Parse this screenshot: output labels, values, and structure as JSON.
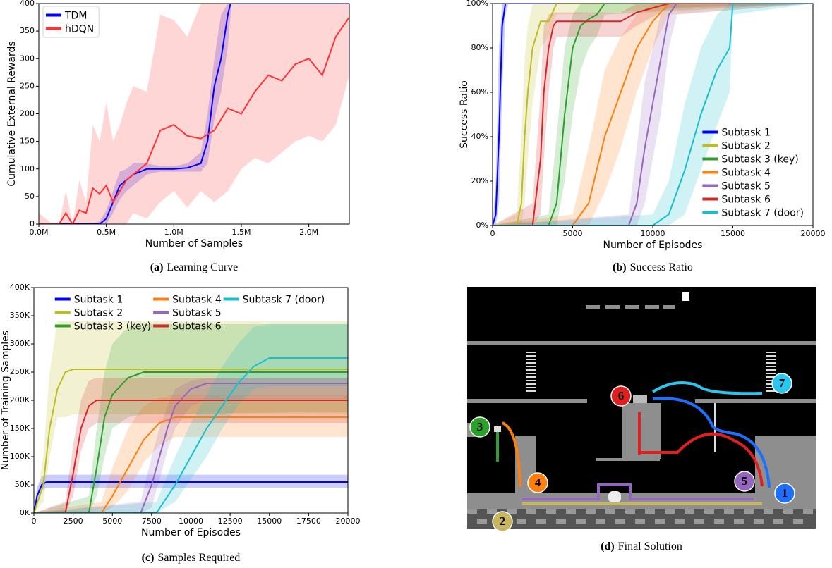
{
  "chart_data": [
    {
      "type": "line",
      "caption_label": "(a)",
      "caption": "Learning Curve",
      "xlabel": "Number of Samples",
      "ylabel": "Cumulative External Rewards",
      "xlim": [
        0,
        2300000
      ],
      "xticks": [
        {
          "value": 0,
          "label": "0.0M"
        },
        {
          "value": 500000,
          "label": "0.5M"
        },
        {
          "value": 1000000,
          "label": "1.0M"
        },
        {
          "value": 1500000,
          "label": "1.5M"
        },
        {
          "value": 2000000,
          "label": "2.0M"
        }
      ],
      "ylim": [
        0,
        400
      ],
      "yticks": [
        0,
        50,
        100,
        150,
        200,
        250,
        300,
        350,
        400
      ],
      "legend": "upper left",
      "legend_frame": true,
      "legend_columns": 1,
      "series": [
        {
          "name": "TDM",
          "color": "#0000ff",
          "x": [
            0,
            400000,
            450000,
            500000,
            550000,
            600000,
            650000,
            700000,
            750000,
            800000,
            900000,
            1000000,
            1100000,
            1200000,
            1250000,
            1300000,
            1350000,
            1400000,
            1420000,
            1430000,
            2300000
          ],
          "values": [
            0,
            0,
            0,
            10,
            40,
            70,
            80,
            90,
            95,
            100,
            100,
            100,
            102,
            110,
            150,
            250,
            300,
            380,
            400,
            400,
            400
          ],
          "lower": [
            0,
            0,
            0,
            0,
            20,
            45,
            60,
            70,
            80,
            90,
            95,
            95,
            95,
            95,
            110,
            190,
            240,
            320,
            380,
            400,
            400
          ],
          "upper": [
            0,
            0,
            5,
            25,
            60,
            95,
            100,
            110,
            110,
            110,
            105,
            105,
            110,
            130,
            200,
            300,
            380,
            400,
            400,
            400,
            400
          ]
        },
        {
          "name": "hDQN",
          "color": "#ff3333",
          "x": [
            0,
            100000,
            150000,
            200000,
            250000,
            300000,
            350000,
            400000,
            450000,
            500000,
            550000,
            600000,
            650000,
            700000,
            800000,
            900000,
            1000000,
            1100000,
            1200000,
            1300000,
            1400000,
            1500000,
            1600000,
            1700000,
            1800000,
            1900000,
            2000000,
            2100000,
            2200000,
            2300000
          ],
          "values": [
            0,
            0,
            0,
            20,
            0,
            25,
            20,
            65,
            55,
            70,
            40,
            60,
            80,
            90,
            110,
            170,
            180,
            160,
            155,
            170,
            210,
            200,
            240,
            270,
            260,
            290,
            300,
            270,
            340,
            375
          ],
          "lower": [
            0,
            0,
            0,
            0,
            0,
            0,
            0,
            0,
            0,
            0,
            0,
            0,
            0,
            20,
            10,
            40,
            60,
            30,
            60,
            40,
            60,
            100,
            120,
            110,
            130,
            150,
            160,
            150,
            180,
            270
          ],
          "upper": [
            20,
            0,
            0,
            60,
            0,
            80,
            40,
            180,
            150,
            220,
            150,
            180,
            220,
            250,
            240,
            380,
            370,
            340,
            400,
            400,
            400,
            400,
            400,
            400,
            400,
            400,
            400,
            400,
            400,
            400
          ]
        }
      ]
    },
    {
      "type": "line",
      "caption_label": "(b)",
      "caption": "Success Ratio",
      "xlabel": "Number of Episodes",
      "ylabel": "Success Ratio",
      "xlim": [
        0,
        20000
      ],
      "xticks": [
        0,
        5000,
        10000,
        15000,
        20000
      ],
      "ylim": [
        0,
        100
      ],
      "yticks": [
        {
          "value": 0,
          "label": "0%"
        },
        {
          "value": 20,
          "label": "20%"
        },
        {
          "value": 40,
          "label": "40%"
        },
        {
          "value": 60,
          "label": "60%"
        },
        {
          "value": 80,
          "label": "80%"
        },
        {
          "value": 100,
          "label": "100%"
        }
      ],
      "legend": "lower right",
      "legend_frame": false,
      "legend_columns": 1,
      "series": [
        {
          "name": "Subtask 1",
          "color": "#0000ff",
          "x": [
            0,
            200,
            400,
            600,
            800,
            1000,
            20000
          ],
          "values": [
            0,
            5,
            40,
            90,
            100,
            100,
            100
          ],
          "lower": [
            0,
            0,
            10,
            60,
            95,
            100,
            100
          ],
          "upper": [
            0,
            20,
            80,
            100,
            100,
            100,
            100
          ]
        },
        {
          "name": "Subtask 2",
          "color": "#bcbd22",
          "x": [
            0,
            1500,
            1800,
            2000,
            2200,
            2500,
            3000,
            3500,
            4000,
            20000
          ],
          "values": [
            0,
            0,
            10,
            40,
            60,
            80,
            92,
            92,
            100,
            100
          ],
          "lower": [
            0,
            0,
            0,
            10,
            30,
            55,
            80,
            85,
            95,
            100
          ],
          "upper": [
            0,
            5,
            40,
            75,
            90,
            100,
            100,
            100,
            100,
            100
          ]
        },
        {
          "name": "Subtask 3 (key)",
          "color": "#2ca02c",
          "x": [
            0,
            3500,
            4000,
            4500,
            5000,
            5500,
            6000,
            6500,
            7000,
            20000
          ],
          "values": [
            0,
            0,
            10,
            50,
            80,
            90,
            93,
            95,
            100,
            100
          ],
          "lower": [
            0,
            0,
            0,
            20,
            50,
            70,
            80,
            85,
            95,
            100
          ],
          "upper": [
            0,
            5,
            40,
            80,
            95,
            100,
            100,
            100,
            100,
            100
          ]
        },
        {
          "name": "Subtask 4",
          "color": "#ff7f0e",
          "x": [
            0,
            5000,
            6000,
            7000,
            8000,
            9000,
            10000,
            11000,
            20000
          ],
          "values": [
            0,
            0,
            10,
            40,
            60,
            80,
            92,
            100,
            100
          ],
          "lower": [
            0,
            0,
            0,
            15,
            35,
            60,
            80,
            95,
            100
          ],
          "upper": [
            0,
            5,
            35,
            70,
            85,
            95,
            100,
            100,
            100
          ]
        },
        {
          "name": "Subtask 5",
          "color": "#9467bd",
          "x": [
            0,
            8500,
            9000,
            9500,
            10000,
            10500,
            11000,
            11500,
            20000
          ],
          "values": [
            0,
            0,
            10,
            35,
            55,
            75,
            95,
            100,
            100
          ],
          "lower": [
            0,
            0,
            0,
            10,
            30,
            50,
            80,
            95,
            100
          ],
          "upper": [
            0,
            5,
            35,
            65,
            80,
            95,
            100,
            100,
            100
          ]
        },
        {
          "name": "Subtask 6",
          "color": "#d62728",
          "x": [
            0,
            2500,
            3000,
            3200,
            3500,
            3800,
            4000,
            8000,
            9000,
            11000,
            20000
          ],
          "values": [
            0,
            0,
            30,
            60,
            80,
            90,
            92,
            92,
            96,
            100,
            100
          ],
          "lower": [
            0,
            0,
            5,
            30,
            60,
            80,
            85,
            85,
            90,
            98,
            100
          ],
          "upper": [
            0,
            10,
            60,
            90,
            95,
            96,
            96,
            96,
            100,
            100,
            100
          ]
        },
        {
          "name": "Subtask 7 (door)",
          "color": "#17becf",
          "x": [
            0,
            10000,
            11000,
            12000,
            13000,
            14000,
            14800,
            15000,
            20000
          ],
          "values": [
            0,
            0,
            5,
            25,
            50,
            70,
            80,
            100,
            100
          ],
          "lower": [
            0,
            0,
            0,
            5,
            25,
            45,
            60,
            95,
            100
          ],
          "upper": [
            0,
            5,
            20,
            55,
            80,
            95,
            100,
            100,
            100
          ]
        }
      ]
    },
    {
      "type": "line",
      "caption_label": "(c)",
      "caption": "Samples Required",
      "xlabel": "Number of Episodes",
      "ylabel": "Number of Training Samples",
      "xlim": [
        0,
        20000
      ],
      "xticks": [
        0,
        2500,
        5000,
        7500,
        10000,
        12500,
        15000,
        17500,
        20000
      ],
      "ylim": [
        0,
        400000
      ],
      "yticks": [
        {
          "value": 0,
          "label": "0K"
        },
        {
          "value": 50000,
          "label": "50K"
        },
        {
          "value": 100000,
          "label": "100K"
        },
        {
          "value": 150000,
          "label": "150K"
        },
        {
          "value": 200000,
          "label": "200K"
        },
        {
          "value": 250000,
          "label": "250K"
        },
        {
          "value": 300000,
          "label": "300K"
        },
        {
          "value": 350000,
          "label": "350K"
        },
        {
          "value": 400000,
          "label": "400K"
        }
      ],
      "legend": "upper center",
      "legend_frame": false,
      "legend_columns": 3,
      "series": [
        {
          "name": "Subtask 1",
          "color": "#0000ff",
          "x": [
            0,
            200,
            500,
            800,
            20000
          ],
          "values": [
            0,
            30000,
            50000,
            55000,
            55000
          ],
          "lower": [
            0,
            20000,
            40000,
            45000,
            45000
          ],
          "upper": [
            0,
            45000,
            65000,
            68000,
            68000
          ]
        },
        {
          "name": "Subtask 2",
          "color": "#bcbd22",
          "x": [
            0,
            600,
            1000,
            1500,
            2000,
            2500,
            20000
          ],
          "values": [
            0,
            50000,
            150000,
            220000,
            250000,
            255000,
            255000
          ],
          "lower": [
            0,
            20000,
            100000,
            170000,
            170000,
            175000,
            175000
          ],
          "upper": [
            0,
            100000,
            250000,
            340000,
            340000,
            340000,
            340000
          ]
        },
        {
          "name": "Subtask 3 (key)",
          "color": "#2ca02c",
          "x": [
            0,
            3500,
            4000,
            4500,
            5000,
            6000,
            7000,
            20000
          ],
          "values": [
            0,
            0,
            80000,
            170000,
            210000,
            240000,
            250000,
            250000
          ],
          "lower": [
            0,
            0,
            30000,
            100000,
            150000,
            170000,
            175000,
            180000
          ],
          "upper": [
            0,
            30000,
            150000,
            250000,
            300000,
            330000,
            335000,
            335000
          ]
        },
        {
          "name": "Subtask 4",
          "color": "#ff7f0e",
          "x": [
            0,
            4300,
            5000,
            6000,
            7000,
            8000,
            9000,
            20000
          ],
          "values": [
            0,
            0,
            30000,
            80000,
            130000,
            160000,
            170000,
            170000
          ],
          "lower": [
            0,
            0,
            10000,
            40000,
            90000,
            120000,
            135000,
            135000
          ],
          "upper": [
            0,
            20000,
            80000,
            150000,
            190000,
            205000,
            210000,
            210000
          ]
        },
        {
          "name": "Subtask 5",
          "color": "#9467bd",
          "x": [
            0,
            6800,
            7500,
            8000,
            8500,
            9000,
            10000,
            11000,
            20000
          ],
          "values": [
            0,
            0,
            50000,
            100000,
            150000,
            190000,
            220000,
            230000,
            230000
          ],
          "lower": [
            0,
            0,
            10000,
            60000,
            110000,
            150000,
            190000,
            200000,
            200000
          ],
          "upper": [
            0,
            20000,
            100000,
            150000,
            190000,
            220000,
            235000,
            240000,
            240000
          ]
        },
        {
          "name": "Subtask 6",
          "color": "#d62728",
          "x": [
            0,
            2000,
            2500,
            3000,
            3500,
            4000,
            20000
          ],
          "values": [
            0,
            0,
            70000,
            150000,
            190000,
            200000,
            200000
          ],
          "lower": [
            0,
            0,
            30000,
            110000,
            150000,
            160000,
            160000
          ],
          "upper": [
            0,
            20000,
            120000,
            200000,
            235000,
            240000,
            240000
          ]
        },
        {
          "name": "Subtask 7 (door)",
          "color": "#17becf",
          "x": [
            0,
            7800,
            9000,
            10000,
            11000,
            12000,
            13000,
            14000,
            15000,
            20000
          ],
          "values": [
            0,
            0,
            50000,
            100000,
            150000,
            190000,
            230000,
            260000,
            275000,
            275000
          ],
          "lower": [
            0,
            0,
            20000,
            60000,
            100000,
            150000,
            190000,
            220000,
            225000,
            225000
          ],
          "upper": [
            0,
            20000,
            100000,
            160000,
            210000,
            260000,
            300000,
            330000,
            335000,
            335000
          ]
        }
      ]
    }
  ],
  "game": {
    "caption_label": "(d)",
    "caption": "Final Solution",
    "markers": [
      "1",
      "2",
      "3",
      "4",
      "5",
      "6",
      "7"
    ]
  }
}
